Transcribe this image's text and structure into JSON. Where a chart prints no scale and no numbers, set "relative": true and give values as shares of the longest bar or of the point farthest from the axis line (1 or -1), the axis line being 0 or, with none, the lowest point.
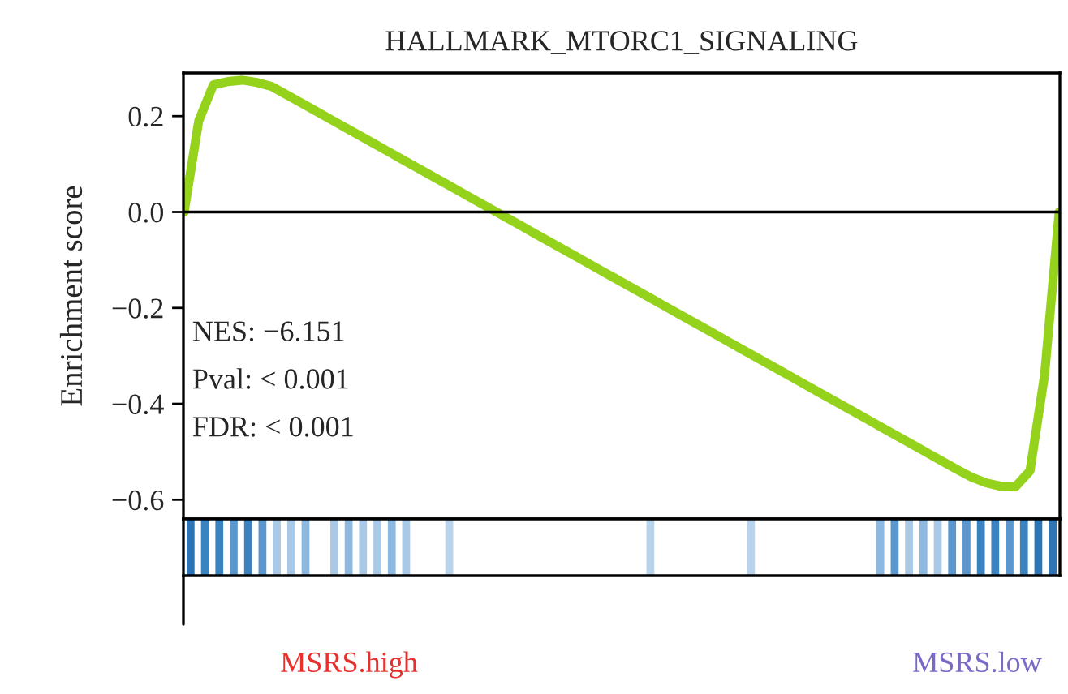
{
  "chart_data": [
    {
      "type": "line",
      "title": "HALLMARK_MTORC1_SIGNALING",
      "ylabel": "Enrichment score",
      "categories": [
        null,
        null,
        null,
        null,
        null,
        null,
        null,
        null,
        null,
        null,
        null,
        null,
        null,
        null,
        null,
        null,
        null,
        null,
        null,
        null,
        null,
        null,
        null,
        null,
        null,
        null,
        null,
        null,
        null,
        null,
        null,
        null,
        null,
        null,
        null,
        null,
        null,
        null,
        null,
        null,
        null,
        null,
        null,
        null,
        null,
        null,
        null,
        null,
        null,
        null,
        null,
        null,
        null,
        null,
        null,
        null,
        null,
        null,
        null,
        null,
        null
      ],
      "series": [
        {
          "color": "#95d21c",
          "values": [
            0.0,
            0.19,
            0.265,
            0.272,
            0.275,
            0.27,
            0.262,
            0.245,
            0.228,
            0.211,
            0.194,
            0.177,
            0.16,
            0.143,
            0.126,
            0.109,
            0.092,
            0.075,
            0.058,
            0.041,
            0.024,
            0.007,
            -0.01,
            -0.027,
            -0.044,
            -0.061,
            -0.078,
            -0.095,
            -0.112,
            -0.129,
            -0.146,
            -0.163,
            -0.18,
            -0.197,
            -0.214,
            -0.231,
            -0.248,
            -0.265,
            -0.282,
            -0.299,
            -0.316,
            -0.333,
            -0.35,
            -0.367,
            -0.384,
            -0.401,
            -0.418,
            -0.435,
            -0.452,
            -0.469,
            -0.486,
            -0.503,
            -0.52,
            -0.537,
            -0.553,
            -0.565,
            -0.572,
            -0.573,
            -0.54,
            -0.34,
            0.0
          ]
        }
      ],
      "ylim": [
        -0.64,
        0.29
      ],
      "yticks": [
        {
          "value": -0.6,
          "label": "−0.6"
        },
        {
          "value": -0.4,
          "label": "−0.4"
        },
        {
          "value": -0.2,
          "label": "−0.2"
        },
        {
          "value": 0.0,
          "label": "0.0"
        },
        {
          "value": 0.2,
          "label": "0.2"
        }
      ],
      "ref_lines": [
        {
          "axis": "y",
          "value": 0.0,
          "color": "#000000"
        }
      ],
      "annotations": [
        "NES: −6.151",
        "Pval: < 0.001",
        "FDR: < 0.001"
      ],
      "tick_labels": "y",
      "grid": false,
      "legend": false
    },
    {
      "type": "bar",
      "relative": true,
      "tick_labels": false,
      "categories": [
        null,
        null,
        null,
        null,
        null,
        null,
        null,
        null,
        null,
        null,
        null,
        null,
        null,
        null,
        null,
        null,
        null,
        null,
        null,
        null,
        null,
        null,
        null,
        null,
        null,
        null,
        null,
        null,
        null,
        null,
        null,
        null,
        null,
        null,
        null,
        null,
        null,
        null,
        null,
        null,
        null,
        null,
        null,
        null,
        null,
        null,
        null,
        null,
        null,
        null,
        null,
        null,
        null,
        null,
        null,
        null,
        null,
        null,
        null,
        null,
        null
      ],
      "values": [
        1,
        1,
        1,
        1,
        1,
        1,
        1,
        1,
        1,
        null,
        1,
        1,
        1,
        1,
        1,
        1,
        null,
        null,
        1,
        null,
        null,
        null,
        null,
        null,
        null,
        null,
        null,
        null,
        null,
        null,
        null,
        null,
        1,
        null,
        null,
        null,
        null,
        null,
        null,
        1,
        null,
        null,
        null,
        null,
        null,
        null,
        null,
        null,
        1,
        1,
        1,
        1,
        1,
        1,
        1,
        1,
        1,
        1,
        1,
        1,
        1
      ],
      "colors": [
        "#2e75b6",
        "#3a82c0",
        "#3a82c0",
        "#5b97cc",
        "#3a82c0",
        "#5b97cc",
        "#a9c9e6",
        "#a9c9e6",
        "#8db8df",
        "#ffffff",
        "#a9c9e6",
        "#8db8df",
        "#a9c9e6",
        "#a9c9e6",
        "#8db8df",
        "#a9c9e6",
        "#ffffff",
        "#ffffff",
        "#b8d3ec",
        "#ffffff",
        "#ffffff",
        "#ffffff",
        "#ffffff",
        "#ffffff",
        "#ffffff",
        "#ffffff",
        "#ffffff",
        "#ffffff",
        "#ffffff",
        "#ffffff",
        "#ffffff",
        "#ffffff",
        "#b8d3ec",
        "#ffffff",
        "#ffffff",
        "#ffffff",
        "#ffffff",
        "#ffffff",
        "#ffffff",
        "#b8d3ec",
        "#ffffff",
        "#ffffff",
        "#ffffff",
        "#ffffff",
        "#ffffff",
        "#ffffff",
        "#ffffff",
        "#ffffff",
        "#8db8df",
        "#5b97cc",
        "#a9c9e6",
        "#8db8df",
        "#a9c9e6",
        "#5b97cc",
        "#5b97cc",
        "#3a82c0",
        "#3a82c0",
        "#5b97cc",
        "#3a82c0",
        "#2e75b6",
        "#2e75b6"
      ],
      "annotations": [
        "MSRS.high",
        "MSRS.low"
      ]
    }
  ]
}
